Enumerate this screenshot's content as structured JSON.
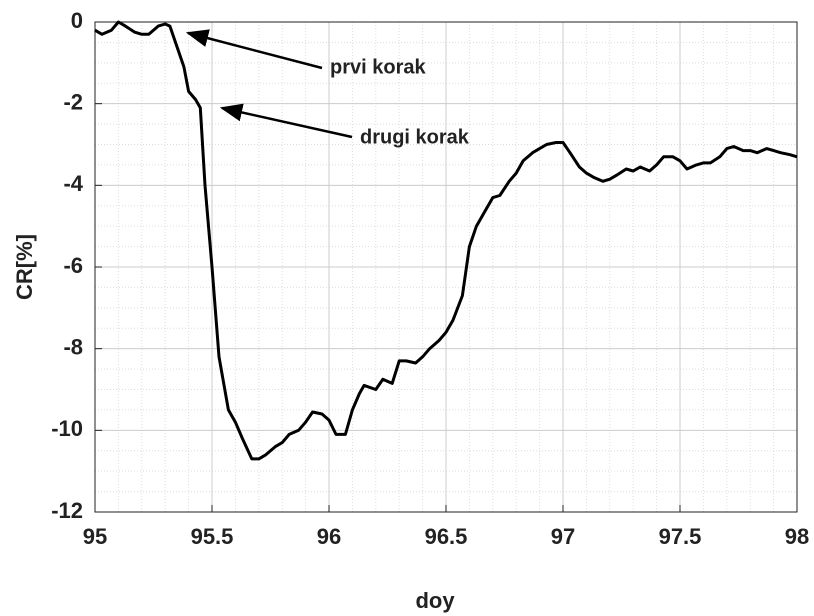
{
  "chart_data": {
    "type": "line",
    "xlabel": "doy",
    "ylabel": "CR[%]",
    "annotations": [
      {
        "text": "prvi korak"
      },
      {
        "text": "drugi korak"
      }
    ],
    "xlim": [
      95,
      98
    ],
    "xticks": [
      95,
      95.5,
      96,
      96.5,
      97,
      97.5,
      98
    ],
    "ylim": [
      -12,
      0
    ],
    "yticks": [
      -12,
      -10,
      -8,
      -6,
      -4,
      -2,
      0
    ],
    "grid": true,
    "color": "#000000",
    "x": [
      95.0,
      95.03,
      95.07,
      95.1,
      95.13,
      95.17,
      95.2,
      95.23,
      95.27,
      95.3,
      95.32,
      95.35,
      95.38,
      95.4,
      95.43,
      95.45,
      95.47,
      95.5,
      95.53,
      95.57,
      95.6,
      95.63,
      95.67,
      95.7,
      95.73,
      95.77,
      95.8,
      95.83,
      95.87,
      95.9,
      95.93,
      95.97,
      96.0,
      96.03,
      96.07,
      96.1,
      96.13,
      96.15,
      96.2,
      96.23,
      96.27,
      96.3,
      96.33,
      96.37,
      96.4,
      96.43,
      96.47,
      96.5,
      96.53,
      96.57,
      96.6,
      96.63,
      96.67,
      96.7,
      96.73,
      96.77,
      96.8,
      96.83,
      96.87,
      96.9,
      96.93,
      96.97,
      97.0,
      97.03,
      97.07,
      97.1,
      97.13,
      97.17,
      97.2,
      97.23,
      97.27,
      97.3,
      97.33,
      97.37,
      97.4,
      97.43,
      97.47,
      97.5,
      97.53,
      97.57,
      97.6,
      97.63,
      97.67,
      97.7,
      97.73,
      97.77,
      97.8,
      97.83,
      97.87,
      97.9,
      97.93,
      97.97,
      98.0
    ],
    "values": [
      -0.2,
      -0.3,
      -0.2,
      0,
      -0.1,
      -0.25,
      -0.3,
      -0.3,
      -0.1,
      -0.05,
      -0.1,
      -0.6,
      -1.1,
      -1.7,
      -1.9,
      -2.1,
      -4,
      -6,
      -8.2,
      -9.5,
      -9.8,
      -10.2,
      -10.7,
      -10.7,
      -10.6,
      -10.4,
      -10.3,
      -10.1,
      -10.0,
      -9.8,
      -9.55,
      -9.6,
      -9.75,
      -10.1,
      -10.1,
      -9.5,
      -9.1,
      -8.9,
      -9.0,
      -8.75,
      -8.85,
      -8.3,
      -8.3,
      -8.35,
      -8.2,
      -8.0,
      -7.8,
      -7.6,
      -7.3,
      -6.7,
      -5.5,
      -5.0,
      -4.6,
      -4.3,
      -4.25,
      -3.9,
      -3.7,
      -3.4,
      -3.2,
      -3.1,
      -3.0,
      -2.95,
      -2.95,
      -3.2,
      -3.55,
      -3.7,
      -3.8,
      -3.9,
      -3.85,
      -3.75,
      -3.6,
      -3.65,
      -3.55,
      -3.65,
      -3.5,
      -3.3,
      -3.3,
      -3.4,
      -3.6,
      -3.5,
      -3.45,
      -3.45,
      -3.3,
      -3.1,
      -3.05,
      -3.15,
      -3.15,
      -3.2,
      -3.1,
      -3.15,
      -3.2,
      -3.25,
      -3.3
    ]
  }
}
